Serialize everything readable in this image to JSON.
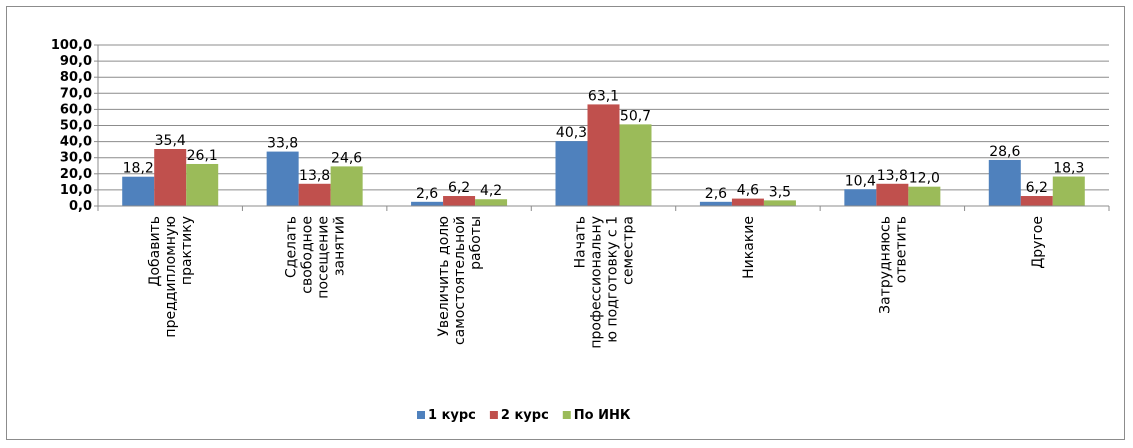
{
  "chart_data": {
    "type": "bar",
    "categories": [
      [
        "Добавить",
        "преддипломную",
        "практику"
      ],
      [
        "Сделать",
        "свободное",
        "посещение",
        "занятий"
      ],
      [
        "Увеличить долю",
        "самостоятельной",
        "работы"
      ],
      [
        "Начать",
        "профессиональну",
        "ю подготовку с 1",
        "семестра"
      ],
      [
        "Никакие"
      ],
      [
        "Затрудняюсь",
        "ответить"
      ],
      [
        "Другое"
      ]
    ],
    "series": [
      {
        "name": "1 курс",
        "color": "#4f81bd",
        "values": [
          18.2,
          33.8,
          2.6,
          40.3,
          2.6,
          10.4,
          28.6
        ],
        "labels": [
          "18,2",
          "33,8",
          "2,6",
          "40,3",
          "2,6",
          "10,4",
          "28,6"
        ]
      },
      {
        "name": "2 курс",
        "color": "#c0504d",
        "values": [
          35.4,
          13.8,
          6.2,
          63.1,
          4.6,
          13.8,
          6.2
        ],
        "labels": [
          "35,4",
          "13,8",
          "6,2",
          "63,1",
          "4,6",
          "13,8",
          "6,2"
        ]
      },
      {
        "name": "По ИНК",
        "color": "#9bbb59",
        "values": [
          26.1,
          24.6,
          4.2,
          50.7,
          3.5,
          12.0,
          18.3
        ],
        "labels": [
          "26,1",
          "24,6",
          "4,2",
          "50,7",
          "3,5",
          "12,0",
          "18,3"
        ]
      }
    ],
    "yticks": [
      "0,0",
      "10,0",
      "20,0",
      "30,0",
      "40,0",
      "50,0",
      "60,0",
      "70,0",
      "80,0",
      "90,0",
      "100,0"
    ],
    "ylim": [
      0,
      100
    ],
    "grid": true,
    "legend_position": "bottom-center",
    "gridline_color": "#8c8c8c"
  }
}
